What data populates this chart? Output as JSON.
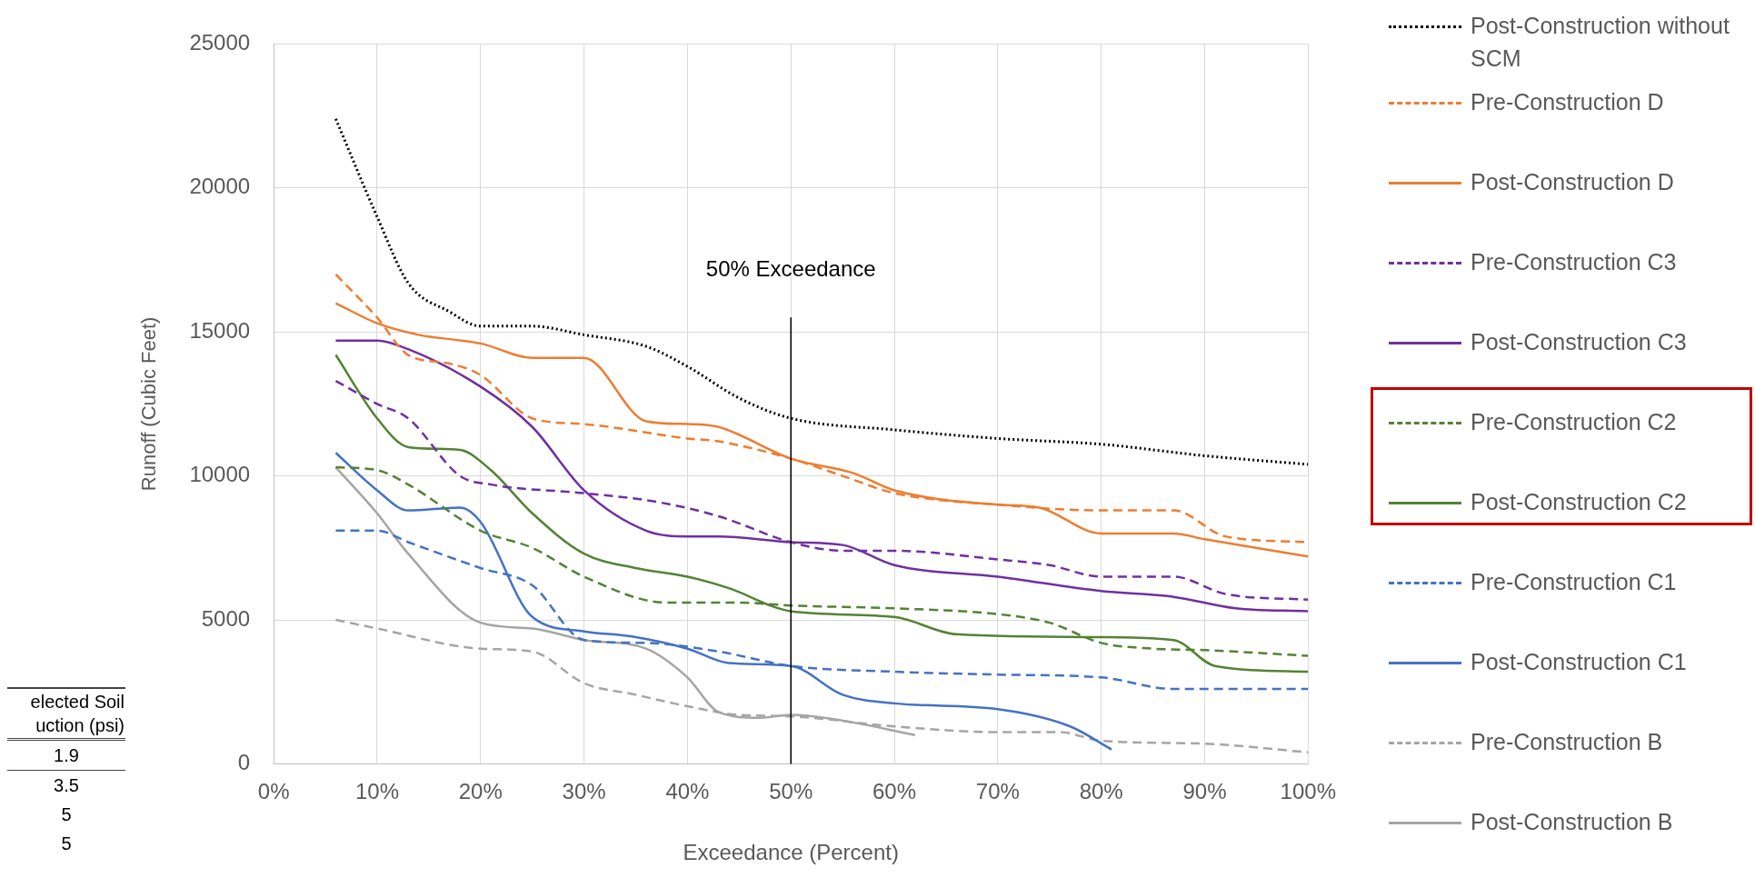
{
  "chart_data": {
    "type": "line",
    "xlabel": "Exceedance (Percent)",
    "ylabel": "Runoff (Cubic Feet)",
    "xlim": [
      0,
      100
    ],
    "xticks": [
      {
        "value": 0,
        "label": "0%"
      },
      {
        "value": 10,
        "label": "10%"
      },
      {
        "value": 20,
        "label": "20%"
      },
      {
        "value": 30,
        "label": "30%"
      },
      {
        "value": 40,
        "label": "40%"
      },
      {
        "value": 50,
        "label": "50%"
      },
      {
        "value": 60,
        "label": "60%"
      },
      {
        "value": 70,
        "label": "70%"
      },
      {
        "value": 80,
        "label": "80%"
      },
      {
        "value": 90,
        "label": "90%"
      },
      {
        "value": 100,
        "label": "100%"
      }
    ],
    "ylim": [
      0,
      25000
    ],
    "yticks": [
      0,
      5000,
      10000,
      15000,
      20000,
      25000
    ],
    "grid": true,
    "legend": "right",
    "marker": "none",
    "ref_lines": [
      {
        "axis": "x",
        "value": 50,
        "label": "50% Exceedance",
        "color": "#000000"
      }
    ],
    "annotations": [
      "elected Soil uction (psi)",
      "1.9",
      "3.5",
      "5",
      "5"
    ],
    "series": [
      {
        "name": "Post-Construction without SCM",
        "color": "#000000",
        "line_style": "dotted",
        "x": [
          6,
          10,
          13,
          17,
          20,
          25,
          30,
          36,
          40,
          45,
          50,
          60,
          70,
          80,
          90,
          100
        ],
        "values": [
          22400,
          19000,
          16700,
          15700,
          15200,
          15200,
          14900,
          14500,
          13800,
          12700,
          12000,
          11600,
          11300,
          11100,
          10700,
          10400
        ]
      },
      {
        "name": "Pre-Construction D",
        "color": "#ed7d31",
        "line_style": "dashed",
        "x": [
          6,
          10,
          13,
          17,
          20,
          25,
          30,
          40,
          43,
          50,
          55,
          60,
          70,
          80,
          87,
          92,
          100
        ],
        "values": [
          17000,
          15500,
          14200,
          13900,
          13500,
          12000,
          11800,
          11300,
          11200,
          10600,
          10000,
          9400,
          9000,
          8800,
          8800,
          7900,
          7700
        ]
      },
      {
        "name": "Post-Construction D",
        "color": "#ed7d31",
        "line_style": "solid",
        "x": [
          6,
          10,
          14,
          20,
          25,
          30,
          36,
          40,
          43,
          50,
          56,
          60,
          70,
          74,
          80,
          87,
          90,
          100
        ],
        "values": [
          16000,
          15300,
          14900,
          14600,
          14100,
          14100,
          11900,
          11800,
          11700,
          10600,
          10100,
          9500,
          9000,
          8900,
          8000,
          8000,
          7800,
          7200
        ]
      },
      {
        "name": "Pre-Construction C3",
        "color": "#7030a0",
        "line_style": "dashed",
        "x": [
          6,
          10,
          13,
          18,
          21,
          30,
          37,
          43,
          50,
          55,
          60,
          70,
          75,
          80,
          87,
          92,
          100
        ],
        "values": [
          13300,
          12500,
          12000,
          10000,
          9700,
          9400,
          9100,
          8600,
          7700,
          7400,
          7400,
          7100,
          6900,
          6500,
          6500,
          5900,
          5700
        ]
      },
      {
        "name": "Post-Construction C3",
        "color": "#7030a0",
        "line_style": "solid",
        "x": [
          6,
          10,
          13,
          20,
          25,
          30,
          36,
          40,
          43,
          50,
          55,
          60,
          70,
          80,
          87,
          93,
          100
        ],
        "values": [
          14700,
          14700,
          14400,
          13100,
          11700,
          9500,
          8100,
          7900,
          7900,
          7700,
          7600,
          6900,
          6500,
          6000,
          5800,
          5400,
          5300
        ]
      },
      {
        "name": "Pre-Construction C2",
        "color": "#548235",
        "line_style": "dashed",
        "x": [
          6,
          10,
          13,
          20,
          25,
          30,
          38,
          45,
          50,
          60,
          70,
          75,
          80,
          85,
          90,
          100
        ],
        "values": [
          10300,
          10200,
          9700,
          8100,
          7500,
          6500,
          5600,
          5600,
          5500,
          5400,
          5200,
          4900,
          4200,
          4000,
          3950,
          3750
        ]
      },
      {
        "name": "Post-Construction C2",
        "color": "#548235",
        "line_style": "solid",
        "x": [
          6,
          10,
          13,
          18,
          21,
          25,
          30,
          35,
          40,
          44,
          50,
          60,
          66,
          80,
          87,
          91,
          100
        ],
        "values": [
          14200,
          12000,
          11000,
          10900,
          10200,
          8700,
          7300,
          6800,
          6500,
          6100,
          5300,
          5100,
          4500,
          4400,
          4300,
          3400,
          3200
        ]
      },
      {
        "name": "Pre-Construction C1",
        "color": "#4472c4",
        "line_style": "dashed",
        "x": [
          6,
          10,
          13,
          20,
          25,
          30,
          36,
          43,
          50,
          60,
          70,
          80,
          87,
          100
        ],
        "values": [
          8100,
          8100,
          7700,
          6800,
          6200,
          4300,
          4200,
          3900,
          3400,
          3200,
          3100,
          3000,
          2600,
          2600
        ]
      },
      {
        "name": "Post-Construction C1",
        "color": "#4472c4",
        "line_style": "solid",
        "x": [
          6,
          10,
          13,
          18,
          20,
          25,
          30,
          35,
          40,
          44,
          50,
          55,
          60,
          70,
          77,
          81
        ],
        "values": [
          10800,
          9500,
          8800,
          8900,
          8400,
          5100,
          4600,
          4400,
          4000,
          3500,
          3400,
          2400,
          2100,
          1900,
          1300,
          500
        ]
      },
      {
        "name": "Pre-Construction B",
        "color": "#a5a5a5",
        "line_style": "dashed",
        "x": [
          6,
          10,
          20,
          25,
          30,
          35,
          40,
          45,
          50,
          60,
          70,
          76,
          80,
          90,
          100
        ],
        "values": [
          5000,
          4700,
          4000,
          3900,
          2800,
          2400,
          2000,
          1700,
          1650,
          1300,
          1100,
          1100,
          800,
          700,
          400
        ]
      },
      {
        "name": "Post-Construction B",
        "color": "#a5a5a5",
        "line_style": "solid",
        "x": [
          6,
          10,
          13,
          20,
          25,
          30,
          36,
          40,
          43,
          47,
          50,
          55,
          62
        ],
        "values": [
          10300,
          8700,
          7300,
          4900,
          4700,
          4300,
          4000,
          3000,
          1800,
          1600,
          1700,
          1500,
          1000
        ]
      }
    ]
  }
}
